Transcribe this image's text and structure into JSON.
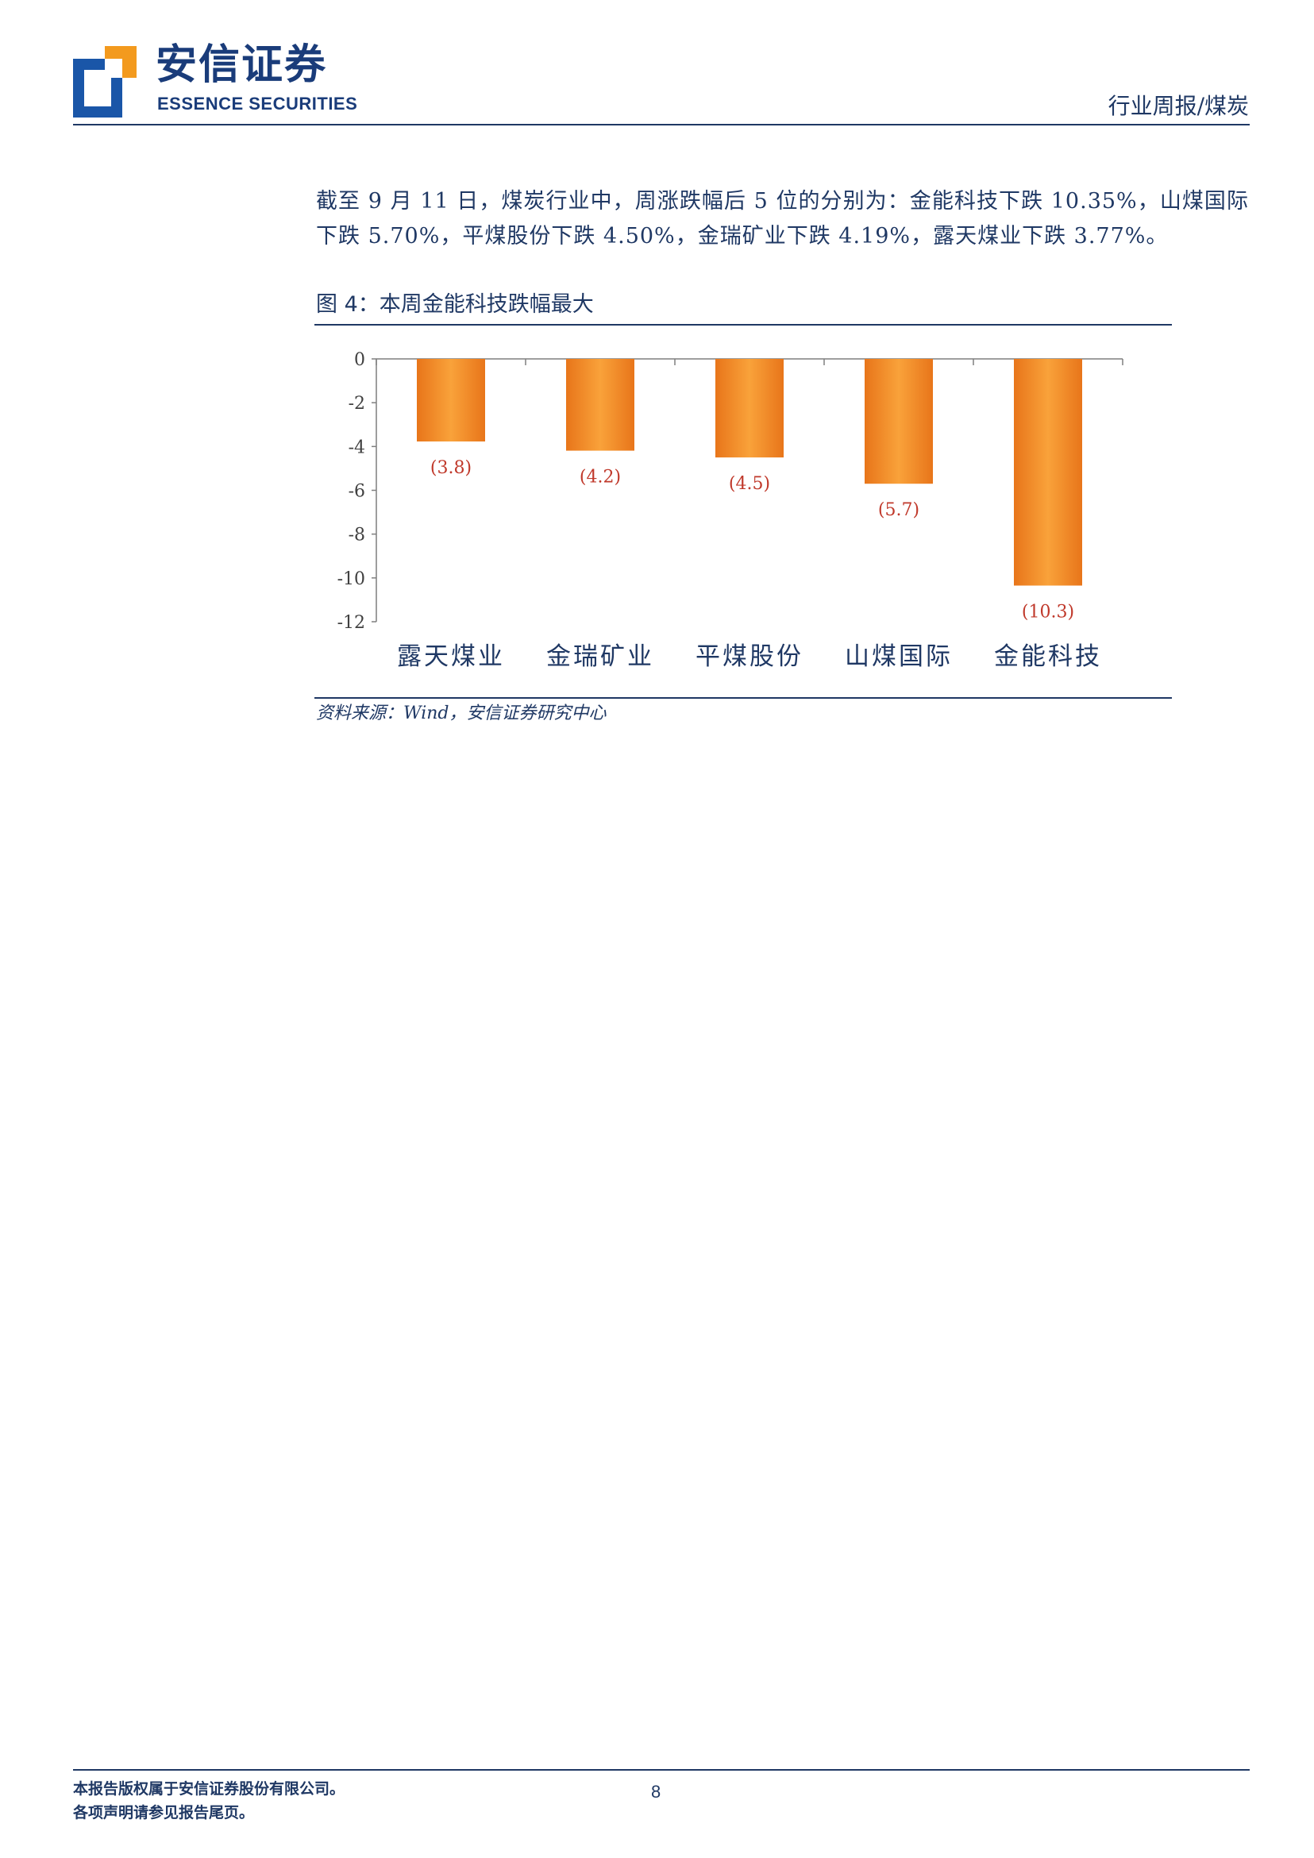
{
  "header": {
    "brand_cn": "安信证券",
    "brand_en": "ESSENCE SECURITIES",
    "section": "行业周报/煤炭",
    "logo_colors": {
      "blue": "#1a56a8",
      "orange": "#f39a1e"
    }
  },
  "body": {
    "paragraph": "截至 9 月 11 日，煤炭行业中，周涨跌幅后 5 位的分别为：金能科技下跌 10.35%，山煤国际下跌 5.70%，平煤股份下跌 4.50%，金瑞矿业下跌 4.19%，露天煤业下跌 3.77%。"
  },
  "figure": {
    "label": "图",
    "number": "4",
    "caption": "：本周金能科技跌幅最大",
    "source": "资料来源：Wind，安信证券研究中心"
  },
  "chart_data": {
    "type": "bar",
    "categories": [
      "露天煤业",
      "金瑞矿业",
      "平煤股份",
      "山煤国际",
      "金能科技"
    ],
    "values": [
      -3.77,
      -4.19,
      -4.5,
      -5.7,
      -10.35
    ],
    "data_labels": [
      "(3.8)",
      "(4.2)",
      "(4.5)",
      "(5.7)",
      "(10.3)"
    ],
    "ylim": [
      -12,
      0
    ],
    "yticks": [
      "0",
      "-2",
      "-4",
      "-6",
      "-8",
      "-10",
      "-12"
    ],
    "ytick_values": [
      0,
      -2,
      -4,
      -6,
      -8,
      -10,
      -12
    ],
    "grid": false,
    "bar_color": "#f08a24",
    "label_color": "#c0392b",
    "title": "",
    "xlabel": "",
    "ylabel": ""
  },
  "footer": {
    "line1": "本报告版权属于安信证券股份有限公司。",
    "line2": "各项声明请参见报告尾页。",
    "page": "8"
  }
}
